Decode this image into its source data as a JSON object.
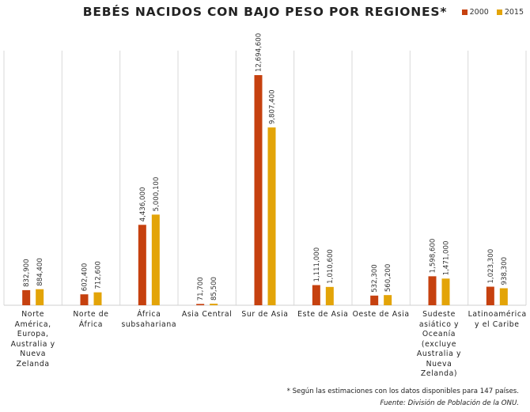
{
  "chart_data": {
    "type": "bar",
    "title": "BEBÉS NACIDOS CON BAJO PESO POR REGIONES*",
    "categories": [
      "Norte América, Europa, Australia y Nueva Zelanda",
      "Norte de África",
      "África subsahariana",
      "Asia Central",
      "Sur de Asia",
      "Este de Asia",
      "Oeste de Asia",
      "Sudeste asiático y Oceanía (excluye Australia y Nueva Zelanda)",
      "Latinoamérica y el Caribe"
    ],
    "category_lines": [
      [
        "Norte",
        "América,",
        "Europa,",
        "Australia y",
        "Nueva",
        "Zelanda"
      ],
      [
        "Norte de",
        "África"
      ],
      [
        "África",
        "subsahariana"
      ],
      [
        "Asia Central"
      ],
      [
        "Sur de Asia"
      ],
      [
        "Este de Asia"
      ],
      [
        "Oeste de Asia"
      ],
      [
        "Sudeste",
        "asiático y",
        "Oceanía",
        "(excluye",
        "Australia y",
        "Nueva",
        "Zelanda)"
      ],
      [
        "Latinoamérica",
        "y el Caribe"
      ]
    ],
    "series": [
      {
        "name": "2000",
        "color": "#c6410f",
        "values": [
          832900,
          602400,
          4436000,
          71700,
          12694600,
          1111000,
          532300,
          1598600,
          1023300
        ],
        "labels": [
          "832,900",
          "602,400",
          "4,436,000",
          "71,700",
          "12,694,600",
          "1,111,000",
          "532,300",
          "1,598,600",
          "1,023,300"
        ]
      },
      {
        "name": "2015",
        "color": "#e3a408",
        "values": [
          884400,
          712600,
          5000100,
          85500,
          9807400,
          1010600,
          560200,
          1471000,
          938300
        ],
        "labels": [
          "884,400",
          "712,600",
          "5,000,100",
          "85,500",
          "9,807,400",
          "1,010,600",
          "560,200",
          "1,471,000",
          "938,300"
        ]
      }
    ],
    "ylim": [
      0,
      12694600
    ],
    "grid": false,
    "legend_position": "top-right",
    "footnote": "* Según las estimaciones con los datos disponibles para 147 países.",
    "source": "Fuente: División de Población de la ONU."
  }
}
